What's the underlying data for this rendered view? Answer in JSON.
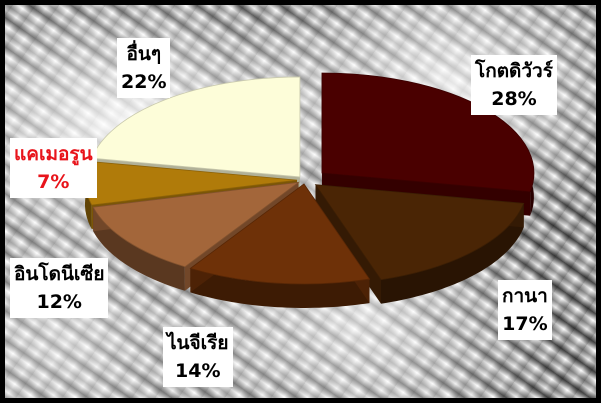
{
  "chart_data": {
    "type": "pie",
    "title": "",
    "slices": [
      {
        "label": "โกตดิวัวร์",
        "pct_label": "28%",
        "value": 28,
        "color": "#4a0000"
      },
      {
        "label": "กานา",
        "pct_label": "17%",
        "value": 17,
        "color": "#4a2505"
      },
      {
        "label": "ไนจีเรีย",
        "pct_label": "14%",
        "value": 14,
        "color": "#6e3108"
      },
      {
        "label": "อินโดนีเซีย",
        "pct_label": "12%",
        "value": 12,
        "color": "#a3663a"
      },
      {
        "label": "แคเมอรูน",
        "pct_label": "7%",
        "value": 7,
        "color": "#b07b0a",
        "highlight": true
      },
      {
        "label": "อื่นๆ",
        "pct_label": "22%",
        "value": 22,
        "color": "#fdfdd9"
      }
    ]
  }
}
